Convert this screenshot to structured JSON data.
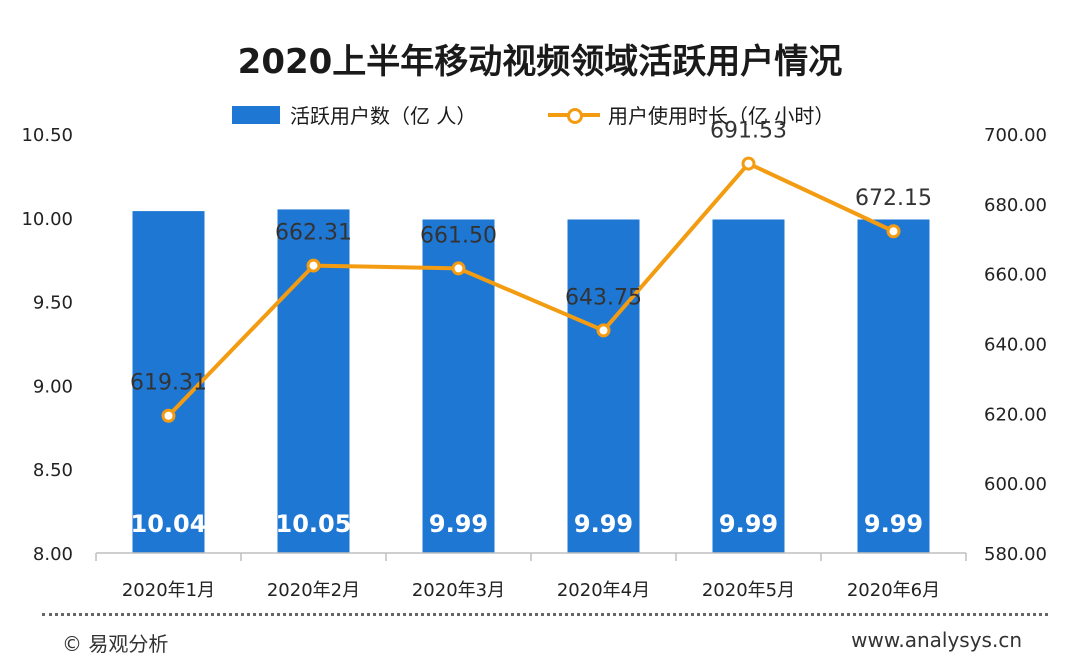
{
  "title": "2020上半年移动视频领域活跃用户情况",
  "legend": {
    "bar_label": "活跃用户数（亿 人）",
    "line_label": "用户使用时长（亿 小时）"
  },
  "footer": {
    "copyright": "© 易观分析",
    "url": "www.analysys.cn"
  },
  "colors": {
    "bar": "#1f77d4",
    "line": "#f39c12",
    "axis": "#bfbfbf"
  },
  "chart_data": {
    "type": "bar",
    "categories": [
      "2020年1月",
      "2020年2月",
      "2020年3月",
      "2020年4月",
      "2020年5月",
      "2020年6月"
    ],
    "series": [
      {
        "name": "活跃用户数（亿 人）",
        "type": "bar",
        "axis": "left",
        "values": [
          10.04,
          10.05,
          9.99,
          9.99,
          9.99,
          9.99
        ],
        "value_labels": [
          "10.04",
          "10.05",
          "9.99",
          "9.99",
          "9.99",
          "9.99"
        ]
      },
      {
        "name": "用户使用时长（亿 小时）",
        "type": "line",
        "axis": "right",
        "values": [
          619.31,
          662.31,
          661.5,
          643.75,
          691.53,
          672.15
        ],
        "value_labels": [
          "619.31",
          "662.31",
          "661.50",
          "643.75",
          "691.53",
          "672.15"
        ]
      }
    ],
    "y_left": {
      "ylim": [
        8.0,
        10.5
      ],
      "ticks": [
        8.0,
        8.5,
        9.0,
        9.5,
        10.0,
        10.5
      ],
      "tick_labels": [
        "8.00",
        "8.50",
        "9.00",
        "9.50",
        "10.00",
        "10.50"
      ]
    },
    "y_right": {
      "ylim": [
        580,
        700
      ],
      "ticks": [
        580,
        600,
        620,
        640,
        660,
        680,
        700
      ],
      "tick_labels": [
        "580.00",
        "600.00",
        "620.00",
        "640.00",
        "660.00",
        "680.00",
        "700.00"
      ]
    },
    "grid": false,
    "legend_position": "top-center"
  }
}
